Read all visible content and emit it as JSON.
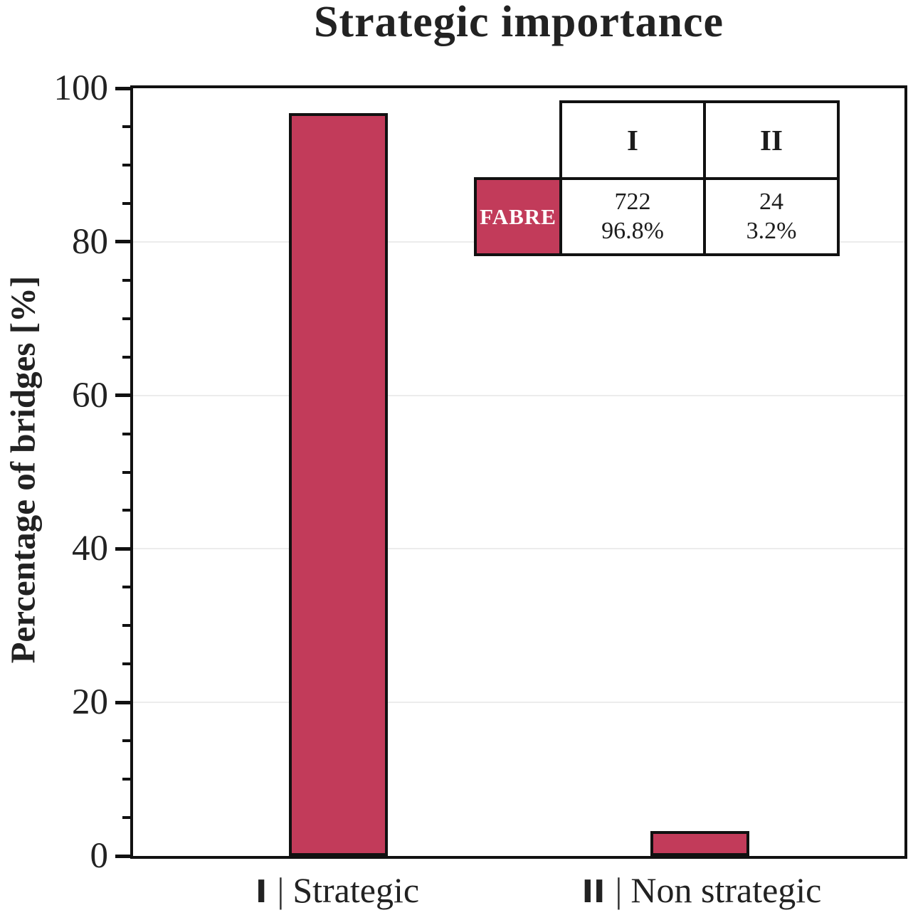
{
  "chart_data": {
    "type": "bar",
    "title": "Strategic importance",
    "ylabel": "Percentage of bridges [%]",
    "ylim": [
      0,
      100
    ],
    "ytick_step_major": 20,
    "ytick_step_minor": 5,
    "yticks": [
      0,
      20,
      40,
      60,
      80,
      100
    ],
    "grid": "horizontal-major-light-gray",
    "legend_position": "top-right-table",
    "categories": [
      {
        "numeral": "I",
        "separator": "|",
        "label": "Strategic"
      },
      {
        "numeral": "II",
        "separator": "|",
        "label": "Non strategic"
      }
    ],
    "series": [
      {
        "name": "FABRE",
        "values": [
          96.8,
          3.2
        ],
        "counts": [
          722,
          24
        ]
      }
    ],
    "bar_color": "#c23b5a",
    "bar_border_color": "#111111"
  },
  "legend_table": {
    "row_label": "FABRE",
    "columns": [
      "I",
      "II"
    ],
    "cells": [
      {
        "count": "722",
        "percent": "96.8%"
      },
      {
        "count": "24",
        "percent": "3.2%"
      }
    ],
    "label_bg": "#c23b5a",
    "label_color": "#ffffff"
  }
}
